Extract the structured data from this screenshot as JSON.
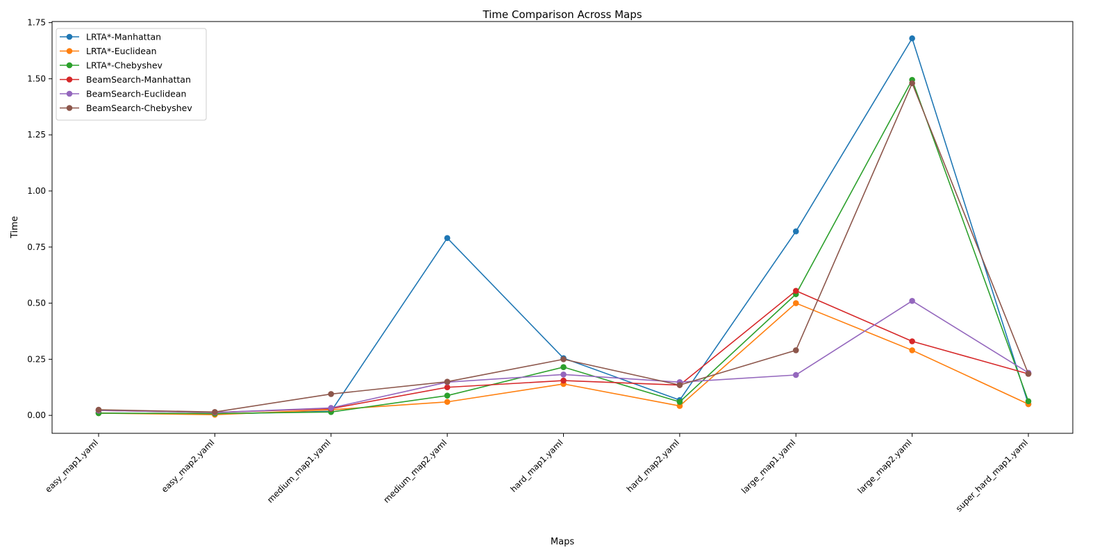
{
  "chart_data": {
    "type": "line",
    "title": "Time Comparison Across Maps",
    "xlabel": "Maps",
    "ylabel": "Time",
    "ylim": [
      -0.08,
      1.755
    ],
    "yticks": [
      0.0,
      0.25,
      0.5,
      0.75,
      1.0,
      1.25,
      1.5,
      1.75
    ],
    "ytick_labels": [
      "0.00",
      "0.25",
      "0.50",
      "0.75",
      "1.00",
      "1.25",
      "1.50",
      "1.75"
    ],
    "categories": [
      "easy_map1.yaml",
      "easy_map2.yaml",
      "medium_map1.yaml",
      "medium_map2.yaml",
      "hard_map1.yaml",
      "hard_map2.yaml",
      "large_map1.yaml",
      "large_map2.yaml",
      "super_hard_map1.yaml"
    ],
    "grid": false,
    "legend_position": "top-left",
    "markers": "circle",
    "series": [
      {
        "name": "LRTA*-Manhattan",
        "color": "#1f77b4",
        "values": [
          0.01,
          0.006,
          0.018,
          0.79,
          0.255,
          0.068,
          0.82,
          1.68,
          0.05
        ]
      },
      {
        "name": "LRTA*-Euclidean",
        "color": "#ff7f0e",
        "values": [
          0.01,
          0.003,
          0.025,
          0.06,
          0.14,
          0.042,
          0.5,
          0.29,
          0.05
        ]
      },
      {
        "name": "LRTA*-Chebyshev",
        "color": "#2ca02c",
        "values": [
          0.01,
          0.008,
          0.015,
          0.088,
          0.215,
          0.06,
          0.54,
          1.495,
          0.063
        ]
      },
      {
        "name": "BeamSearch-Manhattan",
        "color": "#d62728",
        "values": [
          0.022,
          0.013,
          0.03,
          0.125,
          0.155,
          0.135,
          0.555,
          0.33,
          0.185
        ]
      },
      {
        "name": "BeamSearch-Euclidean",
        "color": "#9467bd",
        "values": [
          0.022,
          0.013,
          0.033,
          0.148,
          0.182,
          0.148,
          0.18,
          0.51,
          0.19
        ]
      },
      {
        "name": "BeamSearch-Chebyshev",
        "color": "#8c564b",
        "values": [
          0.025,
          0.015,
          0.095,
          0.15,
          0.25,
          0.135,
          0.29,
          1.48,
          0.185
        ]
      }
    ]
  }
}
